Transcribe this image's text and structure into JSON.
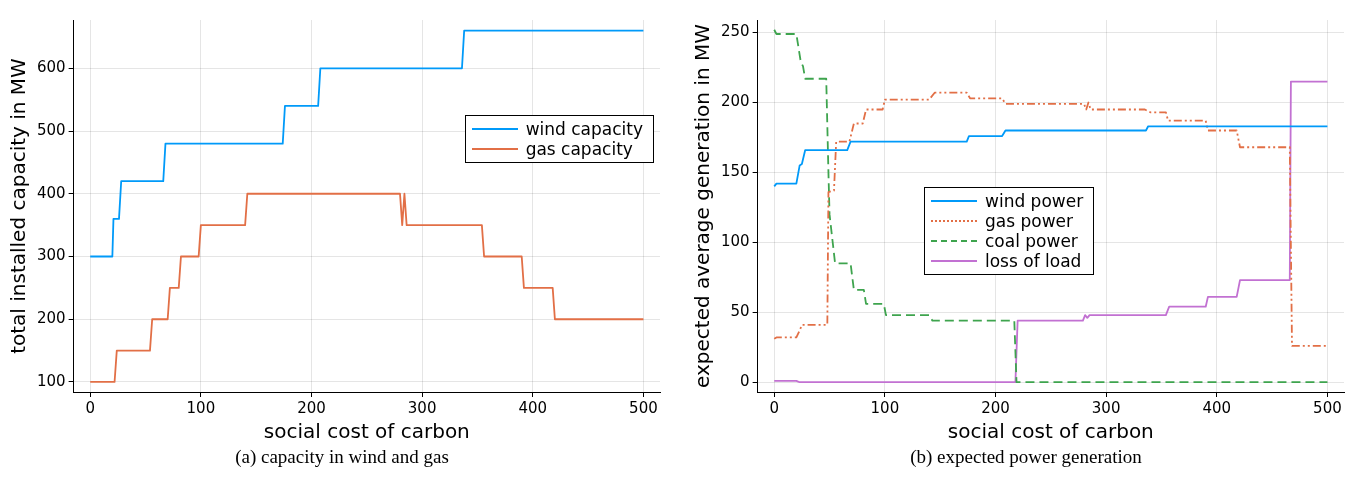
{
  "chart_data": [
    {
      "type": "line",
      "xlabel": "social cost of carbon",
      "ylabel": "total installed capacity in MW",
      "xlim": [
        -15,
        515
      ],
      "xticks": [
        0,
        100,
        200,
        300,
        400,
        500
      ],
      "ylim": [
        84,
        677
      ],
      "yticks": [
        100,
        200,
        300,
        400,
        500,
        600
      ],
      "grid": true,
      "legend": "right",
      "marker": "none",
      "annotations": [
        "(a) capacity in wind and gas"
      ],
      "series": [
        {
          "name": "wind capacity",
          "color": "#009af9",
          "line_style": "solid",
          "x": [
            0,
            20,
            21,
            26,
            28,
            66,
            68,
            174,
            176,
            206,
            208,
            336,
            338,
            500
          ],
          "values": [
            300,
            300,
            360,
            360,
            420,
            420,
            480,
            480,
            540,
            540,
            600,
            600,
            660,
            660
          ]
        },
        {
          "name": "gas capacity",
          "color": "#e26f46",
          "line_style": "solid",
          "x": [
            0,
            22,
            24,
            54,
            56,
            70,
            72,
            80,
            82,
            98,
            100,
            140,
            142,
            280,
            282,
            284,
            286,
            354,
            356,
            390,
            392,
            418,
            420,
            500
          ],
          "values": [
            100,
            100,
            150,
            150,
            200,
            200,
            250,
            250,
            300,
            300,
            350,
            350,
            400,
            400,
            350,
            400,
            350,
            350,
            300,
            300,
            250,
            250,
            200,
            200
          ]
        }
      ]
    },
    {
      "type": "line",
      "xlabel": "social cost of carbon",
      "ylabel": "expected average generation in MW",
      "xlim": [
        -15,
        515
      ],
      "xticks": [
        0,
        100,
        200,
        300,
        400,
        500
      ],
      "ylim": [
        -7,
        259
      ],
      "yticks": [
        0,
        50,
        100,
        150,
        200,
        250
      ],
      "grid": true,
      "legend": "bottom",
      "marker": "none",
      "annotations": [
        "(b) expected power generation"
      ],
      "series": [
        {
          "name": "wind power",
          "color": "#009af9",
          "line_style": "solid",
          "x": [
            0,
            2,
            20,
            23,
            25,
            28,
            66,
            69,
            174,
            176,
            206,
            209,
            336,
            338,
            500
          ],
          "values": [
            140,
            142,
            142,
            155,
            156,
            166,
            166,
            172,
            172,
            176,
            176,
            180,
            180,
            183,
            183
          ]
        },
        {
          "name": "gas power",
          "color": "#e26f46",
          "line_style": "dotted",
          "x": [
            0,
            2,
            20,
            23,
            25,
            48,
            49,
            54,
            56,
            68,
            72,
            80,
            83,
            98,
            100,
            140,
            145,
            174,
            177,
            206,
            209,
            280,
            282,
            284,
            286,
            335,
            340,
            354,
            356,
            390,
            392,
            418,
            421,
            466,
            468,
            500
          ],
          "values": [
            31,
            32,
            32,
            37,
            41,
            41,
            136,
            137,
            172,
            172,
            185,
            185,
            195,
            195,
            202,
            202,
            207,
            207,
            203,
            203,
            199,
            199,
            195,
            200,
            195,
            195,
            193,
            193,
            187,
            187,
            180,
            180,
            168,
            168,
            26,
            26
          ]
        },
        {
          "name": "coal power",
          "color": "#3ea44e",
          "line_style": "dashed",
          "x": [
            0,
            2,
            20,
            24,
            26,
            28,
            47,
            49,
            50,
            55,
            69,
            72,
            81,
            83,
            99,
            101,
            140,
            143,
            217,
            219,
            500
          ],
          "values": [
            252,
            249,
            249,
            229,
            226,
            217,
            217,
            150,
            120,
            85,
            85,
            66,
            66,
            56,
            56,
            48,
            48,
            44,
            44,
            0,
            0
          ]
        },
        {
          "name": "loss of load",
          "color": "#c271d2",
          "line_style": "solid",
          "x": [
            0,
            20,
            23,
            218,
            220,
            279,
            281,
            283,
            285,
            354,
            357,
            390,
            392,
            418,
            421,
            466,
            467,
            500
          ],
          "values": [
            1,
            1,
            0,
            0,
            44,
            44,
            48,
            46,
            48,
            48,
            54,
            54,
            61,
            61,
            73,
            73,
            215,
            215
          ]
        }
      ]
    }
  ]
}
